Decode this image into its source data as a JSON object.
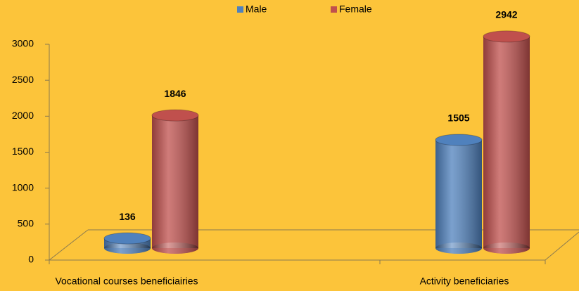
{
  "chart_data": {
    "type": "bar",
    "categories": [
      "Vocational courses beneficiairies",
      "Activity beneficiaries"
    ],
    "series": [
      {
        "name": "Male",
        "color": "#4f81bd",
        "values": [
          136,
          1505
        ]
      },
      {
        "name": "Female",
        "color": "#c0504d",
        "values": [
          1846,
          2942
        ]
      }
    ],
    "ylim": [
      0,
      3000
    ],
    "yticks": [
      0,
      500,
      1000,
      1500,
      2000,
      2500,
      3000
    ],
    "legend": "top"
  }
}
